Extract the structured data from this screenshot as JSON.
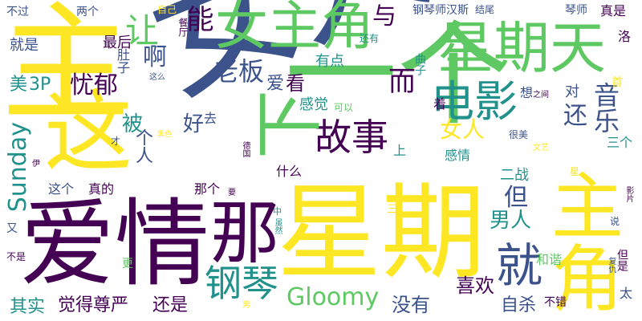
{
  "palette": {
    "background": "#ffffff",
    "colors": [
      "#440154",
      "#3b528b",
      "#21918c",
      "#5ec962",
      "#fde725"
    ]
  },
  "words": [
    {
      "text": "女人",
      "color": "#3b528b"
    },
    {
      "text": "一个",
      "color": "#5ec962"
    },
    {
      "text": "星期",
      "color": "#fde725"
    },
    {
      "text": "爱情",
      "color": "#440154"
    },
    {
      "text": "主",
      "color": "#fde725"
    },
    {
      "text": "那",
      "color": "#440154"
    },
    {
      "text": "女主角",
      "color": "#5ec962"
    },
    {
      "text": "星期天",
      "color": "#5ec962"
    },
    {
      "text": "主角",
      "color": "#fde725"
    },
    {
      "text": "这",
      "color": "#fde725"
    },
    {
      "text": "电影",
      "color": "#21918c"
    },
    {
      "text": "就",
      "color": "#3b528b"
    },
    {
      "text": "钢琴",
      "color": "#21918c"
    },
    {
      "text": "故事",
      "color": "#440154"
    },
    {
      "text": "下",
      "color": "#5ec962"
    },
    {
      "text": "让",
      "color": "#5ec962"
    },
    {
      "text": "老板",
      "color": "#3b528b"
    },
    {
      "text": "能",
      "color": "#440154"
    },
    {
      "text": "与",
      "color": "#440154"
    },
    {
      "text": "啊",
      "color": "#3b528b"
    },
    {
      "text": "忧郁",
      "color": "#440154"
    },
    {
      "text": "Gloomy",
      "color": "#5ec962"
    },
    {
      "text": "Sunday",
      "color": "#21918c"
    },
    {
      "text": "音乐",
      "color": "#3b528b"
    },
    {
      "text": "还",
      "color": "#3b528b"
    },
    {
      "text": "而",
      "color": "#440154"
    },
    {
      "text": "女人",
      "color": "#fde725"
    },
    {
      "text": "男人",
      "color": "#21918c"
    },
    {
      "text": "但",
      "color": "#3b528b"
    },
    {
      "text": "没有",
      "color": "#3b528b"
    },
    {
      "text": "喜欢",
      "color": "#440154"
    },
    {
      "text": "自杀",
      "color": "#3b528b"
    },
    {
      "text": "觉得尊严",
      "color": "#440154"
    },
    {
      "text": "其实",
      "color": "#21918c"
    },
    {
      "text": "还是",
      "color": "#440154"
    },
    {
      "text": "个人",
      "color": "#3b528b"
    },
    {
      "text": "被",
      "color": "#21918c"
    },
    {
      "text": "好",
      "color": "#3b528b"
    },
    {
      "text": "去",
      "color": "#3b528b"
    },
    {
      "text": "感觉",
      "color": "#21918c"
    },
    {
      "text": "可以",
      "color": "#5ec962"
    },
    {
      "text": "爱",
      "color": "#3b528b"
    },
    {
      "text": "看",
      "color": "#440154"
    },
    {
      "text": "有点",
      "color": "#21918c"
    },
    {
      "text": "美",
      "color": "#21918c"
    },
    {
      "text": "3P",
      "color": "#21918c"
    },
    {
      "text": "最后",
      "color": "#440154"
    },
    {
      "text": "就是",
      "color": "#3b528b"
    },
    {
      "text": "不过",
      "color": "#3b528b"
    },
    {
      "text": "两个",
      "color": "#3b528b"
    },
    {
      "text": "自己",
      "color": "#fde725"
    },
    {
      "text": "餐厅",
      "color": "#440154"
    },
    {
      "text": "还有",
      "color": "#21918c"
    },
    {
      "text": "钢琴师汉斯",
      "color": "#3b528b"
    },
    {
      "text": "结尾",
      "color": "#3b528b"
    },
    {
      "text": "琴师",
      "color": "#3b528b"
    },
    {
      "text": "真是",
      "color": "#440154"
    },
    {
      "text": "洛",
      "color": "#440154"
    },
    {
      "text": "肚子",
      "color": "#3b528b"
    },
    {
      "text": "这么",
      "color": "#3b528b"
    },
    {
      "text": "曲子",
      "color": "#21918c"
    },
    {
      "text": "想",
      "color": "#3b528b"
    },
    {
      "text": "之间",
      "color": "#440154"
    },
    {
      "text": "首",
      "color": "#fde725"
    },
    {
      "text": "对",
      "color": "#3b528b"
    },
    {
      "text": "着",
      "color": "#440154"
    },
    {
      "text": "上",
      "color": "#21918c"
    },
    {
      "text": "感情",
      "color": "#21918c"
    },
    {
      "text": "很美",
      "color": "#3b528b"
    },
    {
      "text": "三个",
      "color": "#21918c"
    },
    {
      "text": "文艺",
      "color": "#fde725"
    },
    {
      "text": "星",
      "color": "#fde725"
    },
    {
      "text": "二战",
      "color": "#21918c"
    },
    {
      "text": "什么",
      "color": "#440154"
    },
    {
      "text": "那个",
      "color": "#440154"
    },
    {
      "text": "要",
      "color": "#440154"
    },
    {
      "text": "这个",
      "color": "#3b528b"
    },
    {
      "text": "真的",
      "color": "#440154"
    },
    {
      "text": "才",
      "color": "#3b528b"
    },
    {
      "text": "黑色",
      "color": "#fde725"
    },
    {
      "text": "德国",
      "color": "#440154"
    },
    {
      "text": "伊",
      "color": "#440154"
    },
    {
      "text": "又",
      "color": "#3b528b"
    },
    {
      "text": "不是",
      "color": "#440154"
    },
    {
      "text": "更",
      "color": "#5ec962"
    },
    {
      "text": "中",
      "color": "#21918c"
    },
    {
      "text": "三",
      "color": "#fde725"
    },
    {
      "text": "虽然",
      "color": "#21918c"
    },
    {
      "text": "男",
      "color": "#fde725"
    },
    {
      "text": "和谐",
      "color": "#5ec962"
    },
    {
      "text": "复仇",
      "color": "#3b528b"
    },
    {
      "text": "不错",
      "color": "#440154"
    },
    {
      "text": "但是",
      "color": "#440154"
    },
    {
      "text": "太",
      "color": "#3b528b"
    },
    {
      "text": "说",
      "color": "#3b528b"
    },
    {
      "text": "影片",
      "color": "#440154"
    }
  ]
}
